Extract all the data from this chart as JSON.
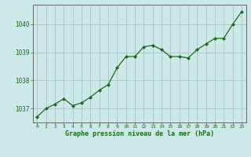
{
  "x": [
    0,
    1,
    2,
    3,
    4,
    5,
    6,
    7,
    8,
    9,
    10,
    11,
    12,
    13,
    14,
    15,
    16,
    17,
    18,
    19,
    20,
    21,
    22,
    23
  ],
  "y": [
    1036.7,
    1037.0,
    1037.15,
    1037.35,
    1037.1,
    1037.2,
    1037.4,
    1037.65,
    1037.85,
    1038.45,
    1038.85,
    1038.85,
    1039.2,
    1039.25,
    1039.1,
    1038.85,
    1038.85,
    1038.8,
    1039.1,
    1039.3,
    1039.5,
    1039.5,
    1040.0,
    1040.45
  ],
  "line_color": "#1a6e1a",
  "marker_color": "#1a6e1a",
  "bg_color": "#cce8e8",
  "grid_color": "#aacccc",
  "axis_label_color": "#1a6e1a",
  "tick_color": "#1a6e1a",
  "xlabel": "Graphe pression niveau de la mer (hPa)",
  "ylim": [
    1036.5,
    1040.7
  ],
  "yticks": [
    1037,
    1038,
    1039,
    1040
  ],
  "xticks": [
    0,
    1,
    2,
    3,
    4,
    5,
    6,
    7,
    8,
    9,
    10,
    11,
    12,
    13,
    14,
    15,
    16,
    17,
    18,
    19,
    20,
    21,
    22,
    23
  ],
  "border_color": "#666666",
  "xlabel_fontsize": 6.0,
  "ytick_fontsize": 5.5,
  "xtick_fontsize": 4.5
}
